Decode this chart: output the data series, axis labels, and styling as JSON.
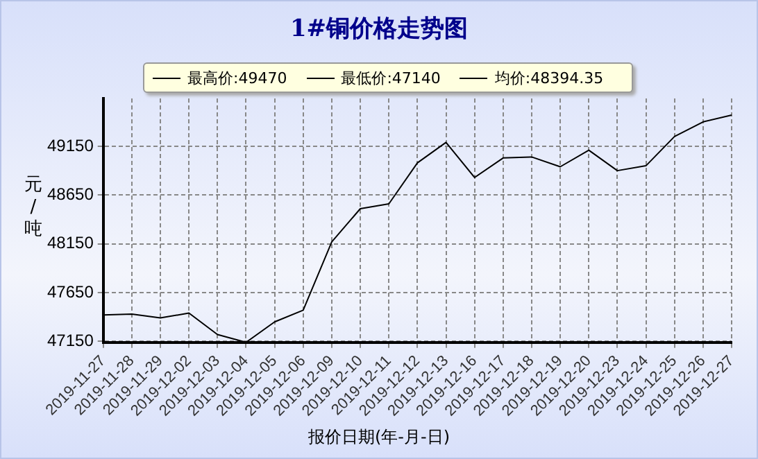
{
  "chart_data": {
    "type": "line",
    "title": "1#铜价格走势图",
    "xlabel": "报价日期(年-月-日)",
    "ylabel": "元/吨",
    "categories": [
      "2019-11-27",
      "2019-11-28",
      "2019-11-29",
      "2019-12-02",
      "2019-12-03",
      "2019-12-04",
      "2019-12-05",
      "2019-12-06",
      "2019-12-09",
      "2019-12-10",
      "2019-12-11",
      "2019-12-12",
      "2019-12-13",
      "2019-12-16",
      "2019-12-17",
      "2019-12-18",
      "2019-12-19",
      "2019-12-20",
      "2019-12-23",
      "2019-12-24",
      "2019-12-25",
      "2019-12-26",
      "2019-12-27"
    ],
    "series": [
      {
        "color": "#000000",
        "values": [
          47420,
          47430,
          47390,
          47440,
          47220,
          47140,
          47350,
          47470,
          48170,
          48510,
          48560,
          48980,
          49190,
          48830,
          49030,
          49040,
          48940,
          49110,
          48900,
          48950,
          49250,
          49400,
          49470
        ]
      }
    ],
    "annotations": [
      "最高价:49470",
      "最低价:47140",
      "均价:48394.35"
    ],
    "ylim": [
      47140,
      49640
    ],
    "yticks": [
      47150,
      47650,
      48150,
      48650,
      49150
    ],
    "grid": true,
    "marker": "none",
    "line_style": "solid",
    "legend": false
  }
}
